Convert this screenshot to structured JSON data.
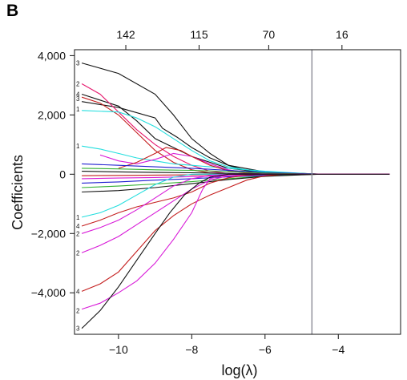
{
  "panel_label": "B",
  "chart_data": {
    "type": "line",
    "title": "",
    "xlabel": "log(λ)",
    "ylabel": "Coefficients",
    "xlim": [
      -11.2,
      -2.3
    ],
    "ylim": [
      -5400,
      4200
    ],
    "x_ticks": [
      {
        "value": -10,
        "label": "−10"
      },
      {
        "value": -8,
        "label": "−8"
      },
      {
        "value": -6,
        "label": "−6"
      },
      {
        "value": -4,
        "label": "−4"
      }
    ],
    "y_ticks": [
      {
        "value": 4000,
        "label": "4,000"
      },
      {
        "value": 2000,
        "label": "2,000"
      },
      {
        "value": 0,
        "label": "0"
      },
      {
        "value": -2000,
        "label": "−2,000"
      },
      {
        "value": -4000,
        "label": "−4,000"
      }
    ],
    "top_ticks": [
      {
        "value": -9.8,
        "label": "142"
      },
      {
        "value": -7.8,
        "label": "115"
      },
      {
        "value": -5.9,
        "label": "70"
      },
      {
        "value": -3.9,
        "label": "16"
      }
    ],
    "vline_x": -4.72,
    "grid": false,
    "legend": "none",
    "left_labels": [
      {
        "y": 3750,
        "label": "3"
      },
      {
        "y": 3050,
        "label": "2"
      },
      {
        "y": 2700,
        "label": "4"
      },
      {
        "y": 2550,
        "label": "3"
      },
      {
        "y": 2200,
        "label": "1"
      },
      {
        "y": 950,
        "label": "1"
      },
      {
        "y": -1450,
        "label": "1"
      },
      {
        "y": -1750,
        "label": "4"
      },
      {
        "y": -2000,
        "label": "2"
      },
      {
        "y": -2650,
        "label": "2"
      },
      {
        "y": -3950,
        "label": "4"
      },
      {
        "y": -4600,
        "label": "2"
      },
      {
        "y": -5200,
        "label": "3"
      }
    ],
    "series": [
      {
        "color": "#111111",
        "points": [
          [
            -11,
            3750
          ],
          [
            -10,
            3400
          ],
          [
            -9,
            2700
          ],
          [
            -8.5,
            2000
          ],
          [
            -8,
            1200
          ],
          [
            -7.5,
            700
          ],
          [
            -7,
            300
          ],
          [
            -6.5,
            120
          ],
          [
            -6,
            50
          ],
          [
            -5,
            20
          ],
          [
            -4.4,
            0
          ],
          [
            -2.6,
            0
          ]
        ]
      },
      {
        "color": "#111111",
        "points": [
          [
            -11,
            2700
          ],
          [
            -10,
            2300
          ],
          [
            -9.5,
            1800
          ],
          [
            -9,
            1200
          ],
          [
            -8.5,
            900
          ],
          [
            -8,
            600
          ],
          [
            -7.5,
            400
          ],
          [
            -7,
            200
          ],
          [
            -6,
            60
          ],
          [
            -5,
            30
          ],
          [
            -4.4,
            0
          ],
          [
            -2.6,
            0
          ]
        ]
      },
      {
        "color": "#111111",
        "points": [
          [
            -11,
            2450
          ],
          [
            -10,
            2250
          ],
          [
            -9,
            1900
          ],
          [
            -8.8,
            1550
          ],
          [
            -8.4,
            1250
          ],
          [
            -8,
            900
          ],
          [
            -7.5,
            550
          ],
          [
            -7,
            300
          ],
          [
            -6,
            80
          ],
          [
            -5,
            20
          ],
          [
            -4.4,
            0
          ],
          [
            -2.6,
            0
          ]
        ]
      },
      {
        "color": "#e6196e",
        "points": [
          [
            -11,
            3050
          ],
          [
            -10.5,
            2700
          ],
          [
            -10,
            2100
          ],
          [
            -9.5,
            1500
          ],
          [
            -9,
            1000
          ],
          [
            -8.5,
            600
          ],
          [
            -8,
            300
          ],
          [
            -7.5,
            100
          ],
          [
            -7,
            20
          ],
          [
            -6,
            0
          ],
          [
            -2.6,
            0
          ]
        ]
      },
      {
        "color": "#c41e1e",
        "points": [
          [
            -11,
            2600
          ],
          [
            -10.5,
            2400
          ],
          [
            -10,
            2000
          ],
          [
            -9.5,
            1400
          ],
          [
            -9,
            800
          ],
          [
            -8.5,
            400
          ],
          [
            -8,
            150
          ],
          [
            -7.5,
            40
          ],
          [
            -7,
            0
          ],
          [
            -2.6,
            0
          ]
        ]
      },
      {
        "color": "#22dede",
        "points": [
          [
            -11,
            2150
          ],
          [
            -10,
            2100
          ],
          [
            -9.5,
            1900
          ],
          [
            -9,
            1600
          ],
          [
            -8.5,
            1200
          ],
          [
            -8,
            800
          ],
          [
            -7.5,
            450
          ],
          [
            -7,
            250
          ],
          [
            -6.5,
            150
          ],
          [
            -6,
            80
          ],
          [
            -5,
            20
          ],
          [
            -4.5,
            0
          ],
          [
            -2.6,
            0
          ]
        ]
      },
      {
        "color": "#22dede",
        "points": [
          [
            -11,
            950
          ],
          [
            -10.5,
            850
          ],
          [
            -10,
            700
          ],
          [
            -9.5,
            550
          ],
          [
            -9,
            450
          ],
          [
            -8.5,
            350
          ],
          [
            -8,
            300
          ],
          [
            -7.5,
            250
          ],
          [
            -7,
            200
          ],
          [
            -6,
            100
          ],
          [
            -5,
            30
          ],
          [
            -4.5,
            0
          ],
          [
            -2.6,
            0
          ]
        ]
      },
      {
        "color": "#d81ad8",
        "points": [
          [
            -10.5,
            650
          ],
          [
            -10,
            450
          ],
          [
            -9.5,
            350
          ],
          [
            -9,
            500
          ],
          [
            -8.5,
            700
          ],
          [
            -8,
            600
          ],
          [
            -7.5,
            350
          ],
          [
            -7,
            150
          ],
          [
            -6.5,
            50
          ],
          [
            -6,
            0
          ],
          [
            -2.6,
            0
          ]
        ]
      },
      {
        "color": "#c41e1e",
        "points": [
          [
            -10,
            200
          ],
          [
            -9.5,
            400
          ],
          [
            -9,
            700
          ],
          [
            -8.7,
            900
          ],
          [
            -8.3,
            800
          ],
          [
            -8,
            600
          ],
          [
            -7.5,
            300
          ],
          [
            -7,
            120
          ],
          [
            -6.5,
            40
          ],
          [
            -6,
            0
          ],
          [
            -2.6,
            0
          ]
        ]
      },
      {
        "color": "#1f1fd0",
        "points": [
          [
            -11,
            350
          ],
          [
            -10,
            300
          ],
          [
            -9,
            250
          ],
          [
            -8,
            200
          ],
          [
            -7,
            130
          ],
          [
            -6,
            60
          ],
          [
            -5,
            20
          ],
          [
            -4.5,
            0
          ],
          [
            -2.6,
            0
          ]
        ]
      },
      {
        "color": "#31b031",
        "points": [
          [
            -11,
            200
          ],
          [
            -10,
            180
          ],
          [
            -9,
            150
          ],
          [
            -8,
            130
          ],
          [
            -7,
            90
          ],
          [
            -6,
            40
          ],
          [
            -5,
            10
          ],
          [
            -4.5,
            0
          ],
          [
            -2.6,
            0
          ]
        ]
      },
      {
        "color": "#111111",
        "points": [
          [
            -11,
            100
          ],
          [
            -10,
            80
          ],
          [
            -9,
            60
          ],
          [
            -8,
            50
          ],
          [
            -7,
            30
          ],
          [
            -6,
            15
          ],
          [
            -5,
            5
          ],
          [
            -4.5,
            0
          ],
          [
            -2.6,
            0
          ]
        ]
      },
      {
        "color": "#c41e1e",
        "points": [
          [
            -11,
            -50
          ],
          [
            -10,
            -40
          ],
          [
            -9,
            -30
          ],
          [
            -8,
            -20
          ],
          [
            -7,
            -10
          ],
          [
            -6,
            0
          ],
          [
            -2.6,
            0
          ]
        ]
      },
      {
        "color": "#d81ad8",
        "points": [
          [
            -11,
            -150
          ],
          [
            -10,
            -130
          ],
          [
            -9,
            -110
          ],
          [
            -8,
            -80
          ],
          [
            -7,
            -50
          ],
          [
            -6,
            -20
          ],
          [
            -5,
            0
          ],
          [
            -2.6,
            0
          ]
        ]
      },
      {
        "color": "#1f1fd0",
        "points": [
          [
            -11,
            -300
          ],
          [
            -10,
            -260
          ],
          [
            -9,
            -200
          ],
          [
            -8,
            -150
          ],
          [
            -7,
            -90
          ],
          [
            -6,
            -40
          ],
          [
            -5,
            -10
          ],
          [
            -4.5,
            0
          ],
          [
            -2.6,
            0
          ]
        ]
      },
      {
        "color": "#31b031",
        "points": [
          [
            -11,
            -450
          ],
          [
            -10,
            -400
          ],
          [
            -9,
            -330
          ],
          [
            -8,
            -250
          ],
          [
            -7,
            -150
          ],
          [
            -6,
            -60
          ],
          [
            -5,
            -15
          ],
          [
            -4.5,
            0
          ],
          [
            -2.6,
            0
          ]
        ]
      },
      {
        "color": "#111111",
        "points": [
          [
            -11,
            -600
          ],
          [
            -10,
            -550
          ],
          [
            -9,
            -450
          ],
          [
            -8,
            -320
          ],
          [
            -7,
            -180
          ],
          [
            -6,
            -70
          ],
          [
            -5,
            -20
          ],
          [
            -4.5,
            0
          ],
          [
            -2.6,
            0
          ]
        ]
      },
      {
        "color": "#22dede",
        "points": [
          [
            -11,
            -1450
          ],
          [
            -10.5,
            -1300
          ],
          [
            -10,
            -1050
          ],
          [
            -9.5,
            -700
          ],
          [
            -9,
            -350
          ],
          [
            -8.5,
            -100
          ],
          [
            -8,
            0
          ],
          [
            -2.6,
            0
          ]
        ]
      },
      {
        "color": "#c41e1e",
        "points": [
          [
            -11,
            -1750
          ],
          [
            -10.5,
            -1550
          ],
          [
            -10,
            -1300
          ],
          [
            -9.5,
            -1100
          ],
          [
            -9,
            -950
          ],
          [
            -8.5,
            -800
          ],
          [
            -8,
            -600
          ],
          [
            -7.5,
            -300
          ],
          [
            -7,
            -120
          ],
          [
            -6.5,
            -30
          ],
          [
            -6,
            0
          ],
          [
            -2.6,
            0
          ]
        ]
      },
      {
        "color": "#d81ad8",
        "points": [
          [
            -11,
            -2000
          ],
          [
            -10.5,
            -1800
          ],
          [
            -10,
            -1550
          ],
          [
            -9.5,
            -1200
          ],
          [
            -9,
            -800
          ],
          [
            -8.5,
            -400
          ],
          [
            -8,
            -150
          ],
          [
            -7.5,
            -40
          ],
          [
            -7,
            0
          ],
          [
            -2.6,
            0
          ]
        ]
      },
      {
        "color": "#d81ad8",
        "points": [
          [
            -11,
            -2650
          ],
          [
            -10.5,
            -2400
          ],
          [
            -10,
            -2100
          ],
          [
            -9.5,
            -1700
          ],
          [
            -9,
            -1300
          ],
          [
            -8.5,
            -900
          ],
          [
            -8,
            -500
          ],
          [
            -7.5,
            -200
          ],
          [
            -7,
            -50
          ],
          [
            -6.5,
            0
          ],
          [
            -2.6,
            0
          ]
        ]
      },
      {
        "color": "#c41e1e",
        "points": [
          [
            -11,
            -3950
          ],
          [
            -10.5,
            -3700
          ],
          [
            -10,
            -3300
          ],
          [
            -9.5,
            -2600
          ],
          [
            -9,
            -1900
          ],
          [
            -8.5,
            -1400
          ],
          [
            -8,
            -1000
          ],
          [
            -7.5,
            -700
          ],
          [
            -7,
            -450
          ],
          [
            -6.5,
            -200
          ],
          [
            -6,
            -50
          ],
          [
            -5.5,
            0
          ],
          [
            -2.6,
            0
          ]
        ]
      },
      {
        "color": "#d81ad8",
        "points": [
          [
            -11,
            -4550
          ],
          [
            -10.5,
            -4350
          ],
          [
            -10,
            -4000
          ],
          [
            -9.5,
            -3600
          ],
          [
            -9,
            -3000
          ],
          [
            -8.5,
            -2200
          ],
          [
            -8,
            -1300
          ],
          [
            -7.7,
            -500
          ],
          [
            -7.5,
            -150
          ],
          [
            -7,
            0
          ],
          [
            -2.6,
            0
          ]
        ]
      },
      {
        "color": "#111111",
        "points": [
          [
            -11,
            -5200
          ],
          [
            -10.5,
            -4600
          ],
          [
            -10,
            -3800
          ],
          [
            -9.5,
            -2900
          ],
          [
            -9,
            -2000
          ],
          [
            -8.6,
            -1300
          ],
          [
            -8.2,
            -700
          ],
          [
            -7.8,
            -300
          ],
          [
            -7.5,
            -100
          ],
          [
            -7,
            0
          ],
          [
            -2.6,
            0
          ]
        ]
      }
    ]
  }
}
